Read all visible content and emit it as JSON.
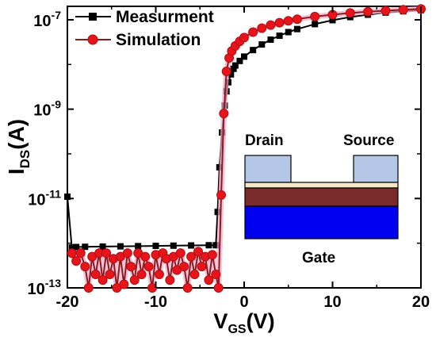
{
  "chart_data": {
    "type": "line",
    "title": "",
    "xlabel": {
      "main": "V",
      "sub": "GS",
      "unit": "(V)"
    },
    "ylabel": {
      "main": "I",
      "sub": "DS",
      "unit": "(A)"
    },
    "xlim": [
      -20,
      20
    ],
    "ylim": [
      1e-13,
      2e-07
    ],
    "yscale": "log",
    "xticks": [
      -20,
      -10,
      0,
      10,
      20
    ],
    "yticks": [
      {
        "value": 1e-13,
        "base": "10",
        "exp": "-13"
      },
      {
        "value": 1e-11,
        "base": "10",
        "exp": "-11"
      },
      {
        "value": 1e-09,
        "base": "10",
        "exp": "-9"
      },
      {
        "value": 1e-07,
        "base": "10",
        "exp": "-7"
      }
    ],
    "grid": false,
    "legend": "top-left",
    "series": [
      {
        "name": "Measurment",
        "color": "#000000",
        "marker": "square",
        "x": [
          -20.0,
          -19.5,
          -19.0,
          -18.0,
          -16.0,
          -14.0,
          -12.0,
          -10.0,
          -8.0,
          -6.0,
          -4.0,
          -3.2,
          -3.0,
          -2.8,
          -2.5,
          -2.2,
          -2.0,
          -1.8,
          -1.5,
          -1.2,
          -1.0,
          -0.5,
          0.0,
          1.0,
          2.0,
          3.0,
          4.0,
          5.0,
          6.0,
          8.0,
          10.0,
          12.0,
          14.0,
          16.0,
          18.0,
          20.0
        ],
        "y": [
          1.1e-11,
          8e-13,
          8.2e-13,
          8.3e-13,
          8.4e-13,
          8.5e-13,
          8.6e-13,
          8.7e-13,
          8.8e-13,
          8.9e-13,
          9e-13,
          9e-13,
          5e-12,
          5e-11,
          3e-10,
          1.2e-09,
          2.5e-09,
          4e-09,
          6e-09,
          8e-09,
          9.5e-09,
          1.2e-08,
          1.5e-08,
          2.1e-08,
          2.8e-08,
          3.6e-08,
          4.4e-08,
          5.3e-08,
          6.2e-08,
          8e-08,
          9.8e-08,
          1.15e-07,
          1.3e-07,
          1.45e-07,
          1.55e-07,
          1.65e-07
        ]
      },
      {
        "name": "Simulation",
        "color": "#e8141b",
        "line_color": "#8b1a1a",
        "marker": "circle",
        "x": [
          -19.5,
          -19.0,
          -18.5,
          -18.0,
          -17.6,
          -17.2,
          -16.8,
          -16.4,
          -16.0,
          -15.6,
          -15.2,
          -14.8,
          -14.4,
          -14.0,
          -13.6,
          -13.2,
          -12.8,
          -12.4,
          -12.0,
          -11.6,
          -11.2,
          -10.8,
          -10.4,
          -10.0,
          -9.6,
          -9.2,
          -8.8,
          -8.4,
          -8.0,
          -7.6,
          -7.2,
          -6.8,
          -6.4,
          -6.0,
          -5.6,
          -5.2,
          -4.8,
          -4.4,
          -4.0,
          -3.6,
          -3.2,
          -2.9,
          -2.6,
          -2.3,
          -2.0,
          -1.7,
          -1.4,
          -1.0,
          -0.5,
          0.0,
          1.0,
          2.0,
          3.0,
          4.0,
          5.0,
          6.0,
          8.0,
          10.0,
          12.0,
          14.0,
          16.0,
          18.0,
          20.0
        ],
        "y": [
          6e-13,
          4e-13,
          6e-13,
          3e-13,
          1e-13,
          5e-13,
          2e-13,
          6e-13,
          1.5e-13,
          6e-13,
          2e-13,
          4.5e-13,
          1e-13,
          5e-13,
          1.2e-13,
          6e-13,
          3e-13,
          1.5e-13,
          6e-13,
          2e-13,
          5e-13,
          3e-13,
          1e-13,
          5.5e-13,
          2e-13,
          6e-13,
          4.5e-13,
          1.5e-13,
          5e-13,
          2.5e-13,
          6e-13,
          3e-13,
          1e-13,
          5e-13,
          2e-13,
          6.5e-13,
          3e-13,
          5e-13,
          1.5e-13,
          5.5e-13,
          2e-13,
          1e-13,
          1.2e-11,
          8e-10,
          7e-09,
          1.4e-08,
          2e-08,
          2.6e-08,
          3.3e-08,
          4e-08,
          5.3e-08,
          6.5e-08,
          7.6e-08,
          8.6e-08,
          9.5e-08,
          1.03e-07,
          1.18e-07,
          1.3e-07,
          1.42e-07,
          1.52e-07,
          1.6e-07,
          1.68e-07,
          1.75e-07
        ]
      }
    ],
    "inset": {
      "labels": {
        "drain": "Drain",
        "source": "Source",
        "gate": "Gate"
      },
      "colors": {
        "contact": "#b4c7e7",
        "insulator": "#f7e7c5",
        "channel": "#7a2c2c",
        "gate": "#0000f0",
        "outline": "#000000"
      }
    }
  }
}
